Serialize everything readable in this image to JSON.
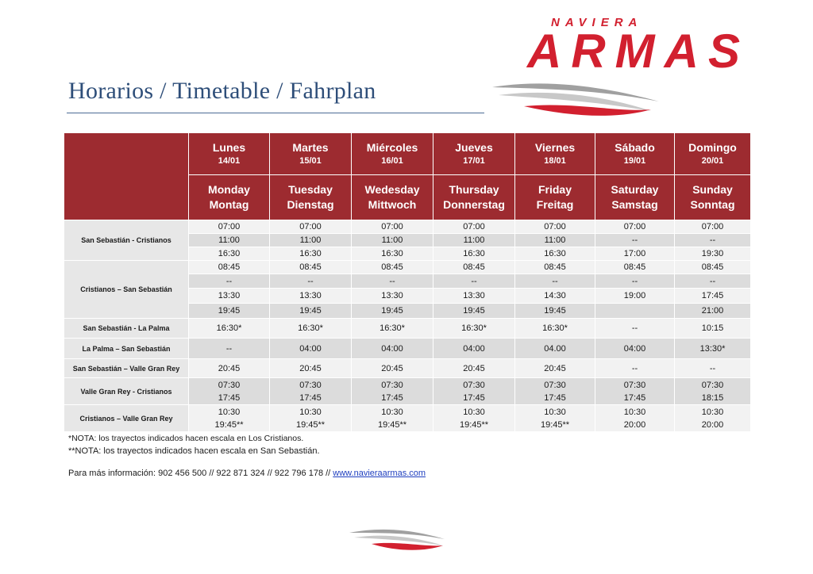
{
  "logo": {
    "top": "NAVIERA",
    "main": "ARMAS"
  },
  "title": "Horarios / Timetable / Fahrplan",
  "days": [
    {
      "es": "Lunes",
      "date": "14/01",
      "en": "Monday",
      "de": "Montag"
    },
    {
      "es": "Martes",
      "date": "15/01",
      "en": "Tuesday",
      "de": "Dienstag"
    },
    {
      "es": "Miércoles",
      "date": "16/01",
      "en": "Wedesday",
      "de": "Mittwoch"
    },
    {
      "es": "Jueves",
      "date": "17/01",
      "en": "Thursday",
      "de": "Donnerstag"
    },
    {
      "es": "Viernes",
      "date": "18/01",
      "en": "Friday",
      "de": "Freitag"
    },
    {
      "es": "Sábado",
      "date": "19/01",
      "en": "Saturday",
      "de": "Samstag"
    },
    {
      "es": "Domingo",
      "date": "20/01",
      "en": "Sunday",
      "de": "Sonntag"
    }
  ],
  "routes": [
    {
      "name": "San Sebastián - Cristianos",
      "rows": [
        [
          "07:00",
          "07:00",
          "07:00",
          "07:00",
          "07:00",
          "07:00",
          "07:00"
        ],
        [
          "11:00",
          "11:00",
          "11:00",
          "11:00",
          "11:00",
          "--",
          "--"
        ],
        [
          "16:30",
          "16:30",
          "16:30",
          "16:30",
          "16:30",
          "17:00",
          "19:30"
        ]
      ]
    },
    {
      "name": "Cristianos – San Sebastián",
      "rows": [
        [
          "08:45",
          "08:45",
          "08:45",
          "08:45",
          "08:45",
          "08:45",
          "08:45"
        ],
        [
          "--",
          "--",
          "--",
          "--",
          "--",
          "--",
          "--"
        ],
        [
          "13:30",
          "13:30",
          "13:30",
          "13:30",
          "14:30",
          "19:00",
          "17:45"
        ],
        [
          "19:45",
          "19:45",
          "19:45",
          "19:45",
          "19:45",
          "",
          "21:00"
        ]
      ]
    },
    {
      "name": "San Sebastián - La Palma",
      "rows": [
        [
          "16:30*",
          "16:30*",
          "16:30*",
          "16:30*",
          "16:30*",
          "--",
          "10:15"
        ]
      ]
    },
    {
      "name": "La Palma – San Sebastián",
      "rows": [
        [
          "--",
          "04:00",
          "04:00",
          "04:00",
          "04.00",
          "04:00",
          "13:30*"
        ]
      ]
    },
    {
      "name": "San Sebastián – Valle Gran Rey",
      "rows": [
        [
          "20:45",
          "20:45",
          "20:45",
          "20:45",
          "20:45",
          "--",
          "--"
        ]
      ]
    },
    {
      "name": "Valle Gran Rey - Cristianos",
      "rows": [
        [
          "07:30\n17:45",
          "07:30\n17:45",
          "07:30\n17:45",
          "07:30\n17:45",
          "07:30\n17:45",
          "07:30\n17:45",
          "07:30\n18:15"
        ]
      ]
    },
    {
      "name": "Cristianos – Valle Gran Rey",
      "rows": [
        [
          "10:30\n19:45**",
          "10:30\n19:45**",
          "10:30\n19:45**",
          "10:30\n19:45**",
          "10:30\n19:45**",
          "10:30\n20:00",
          "10:30\n20:00"
        ]
      ]
    }
  ],
  "notes": {
    "note1": "*NOTA: los trayectos indicados hacen escala en Los Cristianos.",
    "note2": "**NOTA: los trayectos indicados hacen escala en San Sebastián."
  },
  "info": {
    "prefix": "Para más información: 902 456 500 // 922 871 324 // 922 796 178 // ",
    "link": "www.navieraarmas.com"
  },
  "colors": {
    "brand_red": "#d2202f",
    "header_bg": "#9d2b30",
    "title_blue": "#2e4e79"
  }
}
